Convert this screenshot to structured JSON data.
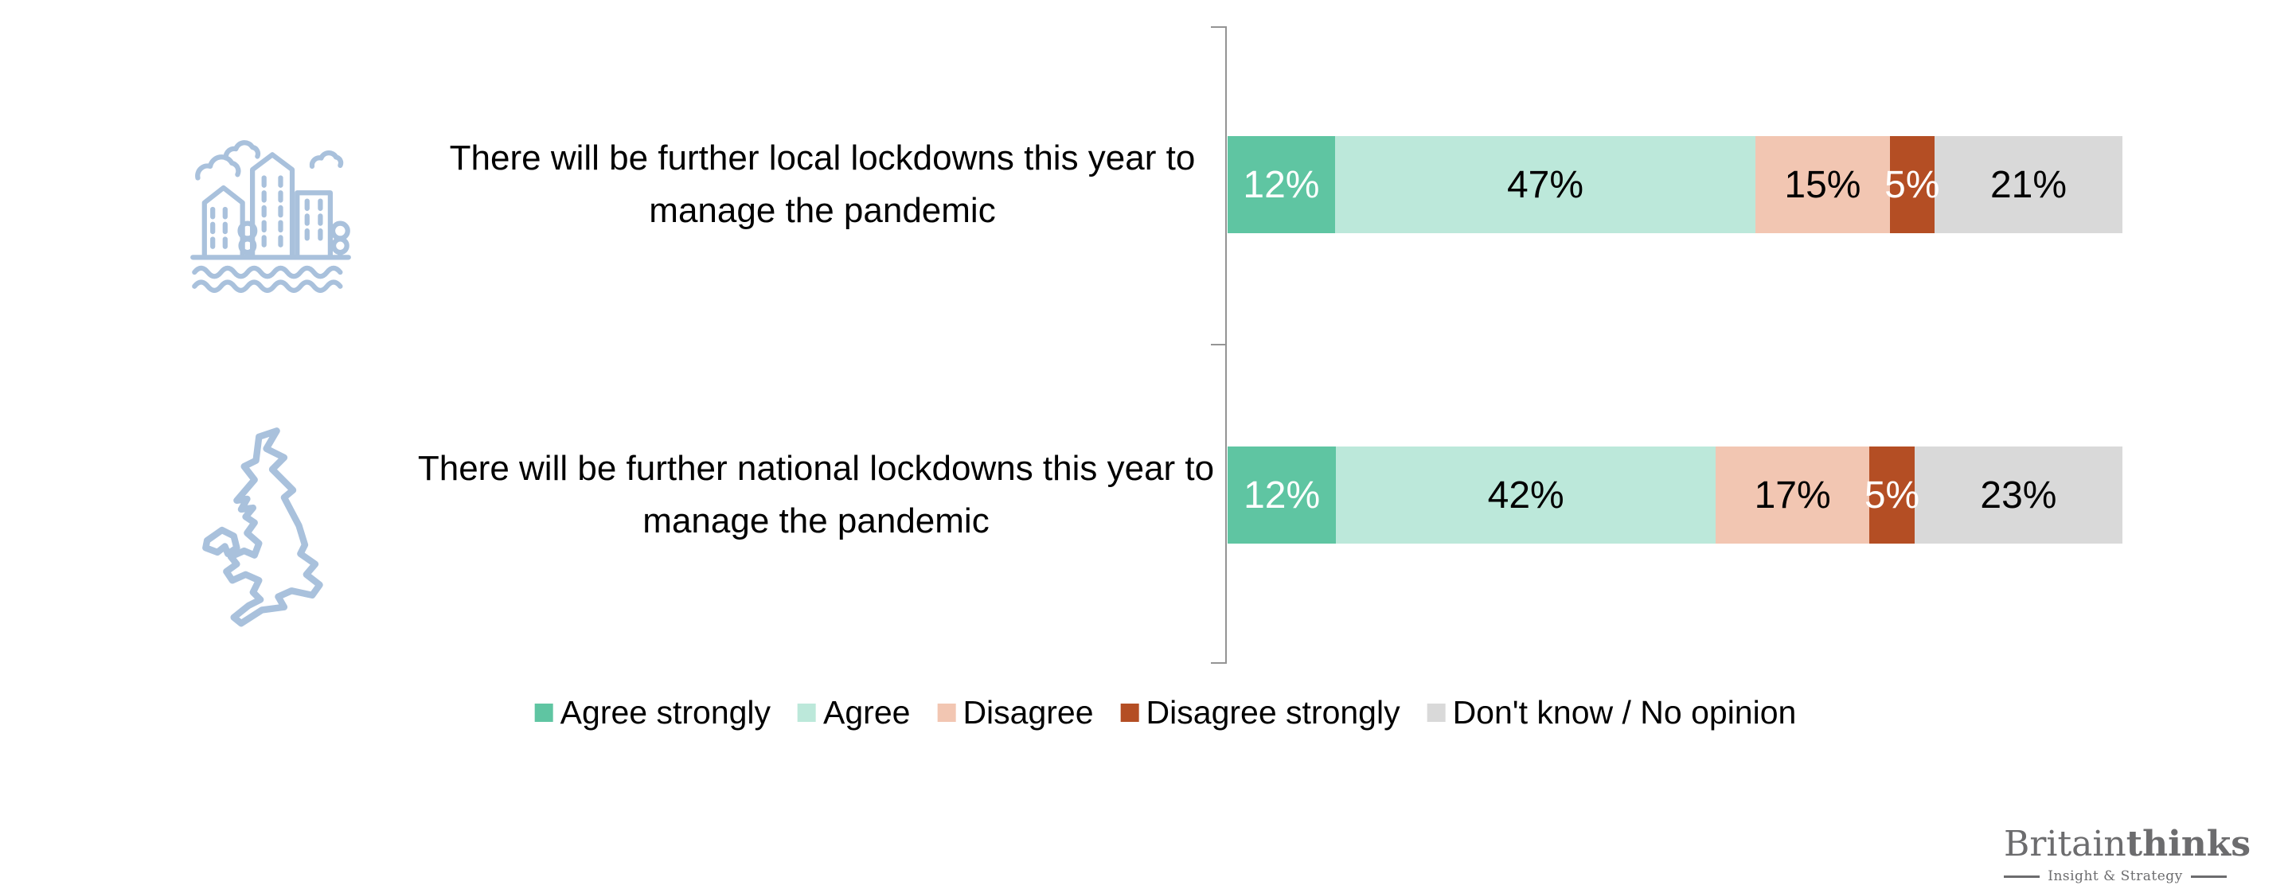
{
  "chart_data": {
    "type": "bar",
    "orientation": "horizontal",
    "stacked": true,
    "unit": "%",
    "xlim": [
      0,
      100
    ],
    "grid": false,
    "legend_position": "bottom",
    "series": [
      {
        "name": "Agree strongly",
        "color": "#5fc5a2",
        "label_color": "#ffffff"
      },
      {
        "name": "Agree",
        "color": "#bce8da",
        "label_color": "#000000"
      },
      {
        "name": "Disagree",
        "color": "#f2c6b2",
        "label_color": "#000000"
      },
      {
        "name": "Disagree strongly",
        "color": "#b44e24",
        "label_color": "#ffffff"
      },
      {
        "name": "Don't know / No opinion",
        "color": "#d9d9d9",
        "label_color": "#000000"
      }
    ],
    "rows": [
      {
        "category": "There will be further local lockdowns this year to manage the pandemic",
        "icon": "city-icon",
        "values": [
          12,
          47,
          15,
          5,
          21
        ],
        "labels": [
          "12%",
          "47%",
          "15%",
          "5%",
          "21%"
        ]
      },
      {
        "category": "There will be further national lockdowns this year to manage the pandemic",
        "icon": "uk-map-icon",
        "values": [
          12,
          42,
          17,
          5,
          23
        ],
        "labels": [
          "12%",
          "42%",
          "17%",
          "5%",
          "23%"
        ]
      }
    ]
  },
  "theme": {
    "icon_color": "#a9c1dc",
    "axis_color": "#949494",
    "brand_color": "#6c6c6e",
    "background": "#ffffff"
  },
  "branding": {
    "name_regular": "Britain",
    "name_bold": "thinks",
    "tagline": "Insight & Strategy"
  }
}
